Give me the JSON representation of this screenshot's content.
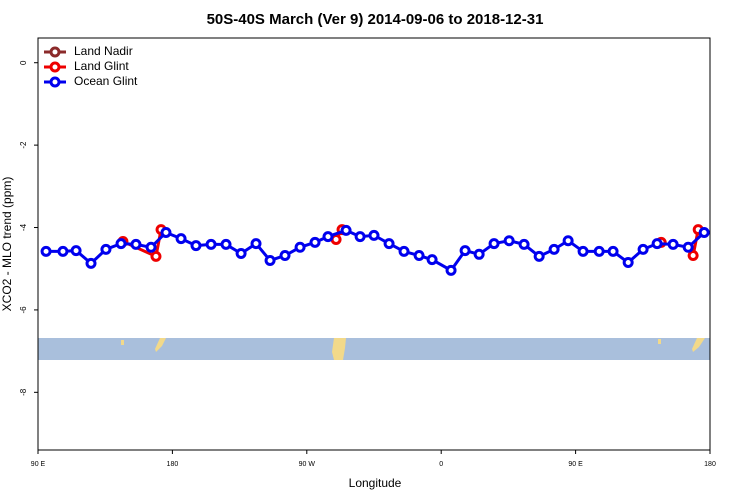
{
  "chart_data": {
    "type": "line",
    "title": "50S-40S March (Ver 9)   2014-09-06 to 2018-12-31",
    "x_label": "Longitude",
    "y_label": "XCO2 - MLO trend (ppm)",
    "xlim": [
      90,
      540
    ],
    "ylim": [
      -9.4,
      0.6
    ],
    "xticks": [
      {
        "value": 90,
        "label": "90 E"
      },
      {
        "value": 180,
        "label": "180"
      },
      {
        "value": 270,
        "label": "90 W"
      },
      {
        "value": 360,
        "label": "0"
      },
      {
        "value": 450,
        "label": "90 E"
      },
      {
        "value": 540,
        "label": "180"
      }
    ],
    "yticks": [
      0,
      -2,
      -4,
      -6,
      -8
    ],
    "legend_position": "top-left",
    "series": [
      {
        "name": "Land Nadir",
        "color": "#8b2a2a",
        "x": [],
        "values": []
      },
      {
        "name": "Land Glint",
        "color": "#ee0000",
        "x": [
          146.9,
          169.0,
          172.4,
          null,
          289.6,
          293.6,
          null,
          507.3,
          null,
          528.7,
          532.1
        ],
        "values": [
          -4.34,
          -4.7,
          -4.05,
          null,
          -4.29,
          -4.05,
          null,
          -4.36,
          null,
          -4.68,
          -4.05
        ]
      },
      {
        "name": "Ocean Glint",
        "color": "#0000ee",
        "x": [
          95.4,
          106.7,
          115.5,
          125.5,
          135.5,
          145.6,
          155.6,
          165.7,
          175.7,
          185.8,
          195.8,
          205.9,
          215.9,
          226.0,
          236.0,
          245.4,
          255.4,
          265.5,
          275.5,
          284.2,
          296.3,
          305.7,
          315.0,
          325.1,
          335.1,
          345.2,
          353.9,
          366.6,
          376.0,
          385.4,
          395.4,
          405.5,
          415.5,
          425.6,
          435.6,
          445.0,
          455.0,
          465.8,
          475.1,
          485.2,
          495.2,
          504.6,
          515.3,
          525.4,
          536.1
        ],
        "values": [
          -4.58,
          -4.58,
          -4.56,
          -4.87,
          -4.53,
          -4.39,
          -4.41,
          -4.48,
          -4.12,
          -4.27,
          -4.44,
          -4.41,
          -4.41,
          -4.63,
          -4.39,
          -4.8,
          -4.68,
          -4.48,
          -4.36,
          -4.22,
          -4.07,
          -4.22,
          -4.19,
          -4.39,
          -4.58,
          -4.68,
          -4.78,
          -5.04,
          -4.56,
          -4.65,
          -4.39,
          -4.32,
          -4.41,
          -4.7,
          -4.53,
          -4.32,
          -4.58,
          -4.58,
          -4.58,
          -4.85,
          -4.53,
          -4.39,
          -4.41,
          -4.48,
          -4.12
        ]
      }
    ]
  }
}
